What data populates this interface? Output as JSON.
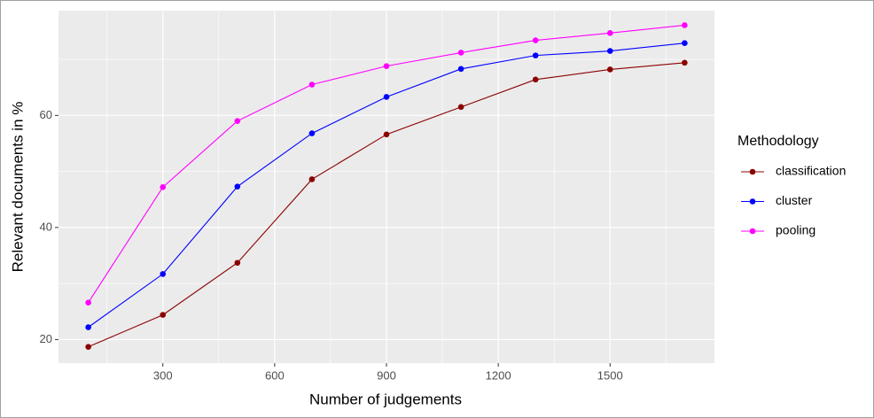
{
  "chart_data": {
    "type": "line",
    "x_label": "Number of judgements",
    "y_label": "Relevant documents in %",
    "legend_title": "Methodology",
    "legend_position": "right",
    "x": [
      100,
      300,
      500,
      700,
      900,
      1100,
      1300,
      1500,
      1700
    ],
    "series": [
      {
        "name": "classification",
        "color": "#8b0000",
        "values": [
          18.7,
          24.4,
          33.7,
          48.6,
          56.6,
          61.5,
          66.4,
          68.2,
          69.4
        ]
      },
      {
        "name": "cluster",
        "color": "#0000ff",
        "values": [
          22.2,
          31.7,
          47.3,
          56.8,
          63.3,
          68.3,
          70.7,
          71.5,
          72.9
        ]
      },
      {
        "name": "pooling",
        "color": "#ff00ff",
        "values": [
          26.6,
          47.2,
          59.0,
          65.5,
          68.8,
          71.2,
          73.4,
          74.7,
          76.1
        ]
      }
    ],
    "xlim": [
      20,
      1780
    ],
    "xticks": [
      300,
      600,
      900,
      1200,
      1500
    ],
    "ylim": [
      15.8,
      78.7
    ],
    "yticks": [
      20,
      40,
      60
    ],
    "grid": true,
    "minor_grid": true
  }
}
